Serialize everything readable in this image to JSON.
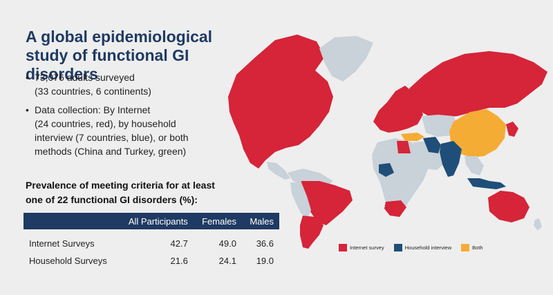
{
  "title": "A global epidemiological study of functional GI disorders",
  "bullets": [
    "73,076 adults surveyed\n(33 countries, 6 continents)",
    "Data collection: By Internet\n(24 countries, red), by household\ninterview (7 countries, blue), or both\nmethods (China and Turkey, green)"
  ],
  "prevalence_heading": "Prevalence of meeting criteria for at least one of 22 functional GI disorders (%):",
  "table": {
    "headers": [
      "",
      "All Participants",
      "Females",
      "Males"
    ],
    "rows": [
      [
        "Internet Surveys",
        "42.7",
        "49.0",
        "36.6"
      ],
      [
        "Household Surveys",
        "21.6",
        "24.1",
        "19.0"
      ]
    ]
  },
  "legend": [
    {
      "label": "Internet survey",
      "color": "#d62438"
    },
    {
      "label": "Household interview",
      "color": "#1f4e79"
    },
    {
      "label": "Both",
      "color": "#f5ac35"
    }
  ],
  "colors": {
    "internet": "#d62438",
    "household": "#1f4e79",
    "both": "#f5ac35",
    "not_surveyed": "#c9d1d9",
    "title": "#1f3a63"
  }
}
